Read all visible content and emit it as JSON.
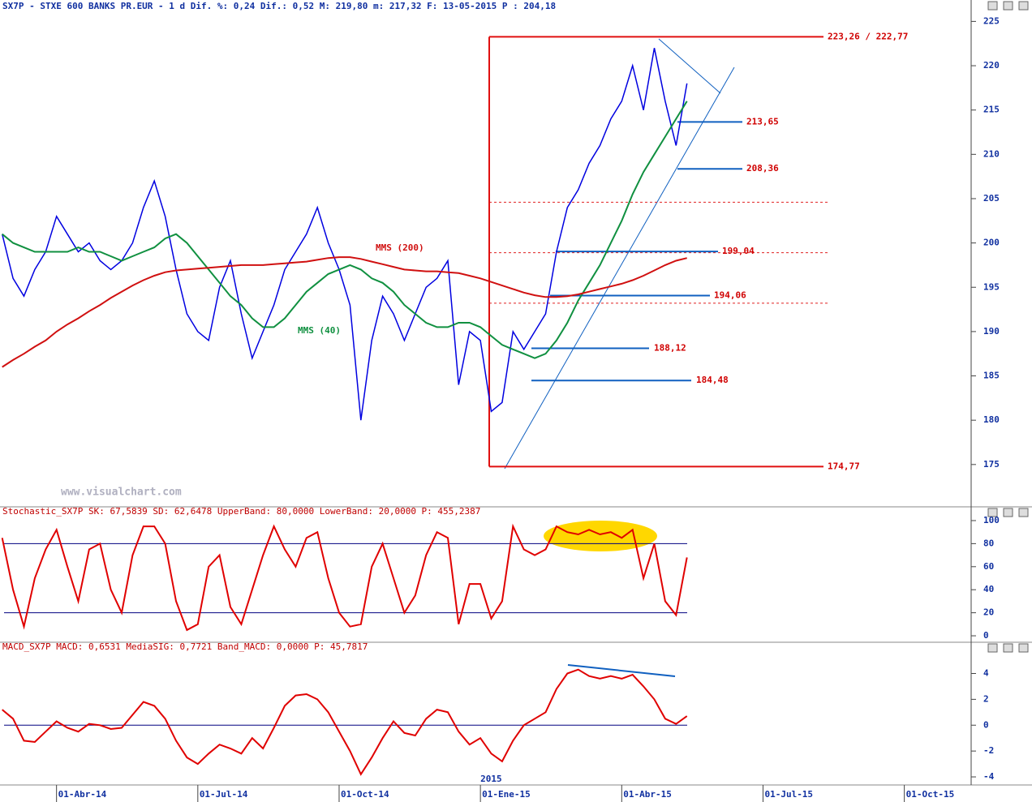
{
  "header": "SX7P - STXE 600 BANKS PR.EUR -  1 d Dif. %: 0,24 Dif.: 0,52 M: 219,80 m: 217,32 F: 13-05-2015 P : 204,18",
  "watermark": "www.visualchart.com",
  "chart_data": [
    {
      "type": "line",
      "x": [
        -5,
        -4,
        -3,
        -2,
        -1,
        0,
        1,
        2,
        3,
        4,
        5,
        6,
        7,
        8,
        9,
        10,
        11,
        12,
        13,
        14,
        15,
        16,
        17,
        18,
        19,
        20,
        21,
        22,
        23,
        24,
        25,
        26,
        27,
        28,
        29,
        30,
        31,
        32,
        33,
        34,
        35,
        36,
        37,
        38,
        39,
        40,
        41,
        42,
        43,
        44,
        45,
        46,
        47,
        48,
        49,
        50,
        51,
        52,
        53,
        54,
        55,
        56,
        57,
        58
      ],
      "xlim": [
        -5.2,
        84
      ],
      "ylim": [
        170.5,
        226.5
      ],
      "yticks": [
        175,
        180,
        185,
        190,
        195,
        200,
        205,
        210,
        215,
        220,
        225
      ],
      "series": [
        {
          "color": "#0000e0",
          "values": [
            201,
            196,
            194,
            197,
            199,
            203,
            201,
            199,
            200,
            198,
            197,
            198,
            200,
            204,
            207,
            203,
            197,
            192,
            190,
            189,
            195,
            198,
            192,
            187,
            190,
            193,
            197,
            199,
            201,
            204,
            200,
            197,
            193,
            180,
            189,
            194,
            192,
            189,
            192,
            195,
            196,
            198,
            184,
            190,
            189,
            181,
            182,
            190,
            188,
            190,
            192,
            199,
            204,
            206,
            209,
            211,
            214,
            216,
            220,
            215,
            222,
            216,
            211,
            218
          ]
        },
        {
          "name": "MMS (40)",
          "color": "#109040",
          "values": [
            201,
            200,
            199.5,
            199,
            199,
            199,
            199,
            199.5,
            199,
            199,
            198.5,
            198,
            198.5,
            199,
            199.5,
            200.5,
            201,
            200,
            198.5,
            197,
            195.5,
            194,
            193,
            191.5,
            190.5,
            190.5,
            191.5,
            193,
            194.5,
            195.5,
            196.5,
            197,
            197.5,
            197,
            196,
            195.5,
            194.5,
            193,
            192,
            191,
            190.5,
            190.5,
            191,
            191,
            190.5,
            189.5,
            188.5,
            188,
            187.5,
            187,
            187.5,
            189,
            191,
            193.5,
            195.5,
            197.5,
            200,
            202.5,
            205.5,
            208,
            210,
            212,
            214,
            216
          ]
        },
        {
          "name": "MMS (200)",
          "color": "#d01010",
          "values": [
            186,
            186.8,
            187.5,
            188.3,
            189,
            190,
            190.8,
            191.5,
            192.3,
            193,
            193.8,
            194.5,
            195.2,
            195.8,
            196.3,
            196.7,
            196.9,
            197,
            197.1,
            197.2,
            197.3,
            197.4,
            197.5,
            197.5,
            197.5,
            197.6,
            197.7,
            197.8,
            197.9,
            198.1,
            198.3,
            198.4,
            198.4,
            198.2,
            197.9,
            197.6,
            197.3,
            197,
            196.9,
            196.8,
            196.8,
            196.7,
            196.6,
            196.3,
            196,
            195.6,
            195.2,
            194.8,
            194.4,
            194.1,
            193.9,
            193.9,
            194,
            194.2,
            194.5,
            194.8,
            195.1,
            195.4,
            195.8,
            196.3,
            196.9,
            197.5,
            198,
            198.3
          ]
        }
      ],
      "levels": [
        {
          "value": 223.26,
          "label": "223,26 / 222,77"
        },
        {
          "value": 213.65,
          "label": "213,65"
        },
        {
          "value": 208.36,
          "label": "208,36"
        },
        {
          "value": 199.04,
          "label": "199,04"
        },
        {
          "value": 194.06,
          "label": "194,06"
        },
        {
          "value": 188.12,
          "label": "188,12"
        },
        {
          "value": 184.48,
          "label": "184,48"
        },
        {
          "value": 174.77,
          "label": "174,77"
        }
      ],
      "dashed_levels": [
        204.6,
        198.9,
        193.2
      ]
    },
    {
      "type": "line",
      "title": "Stochastic_SX7P SK: 67,5839 SD: 62,6478 UpperBand: 80,0000 LowerBand: 20,0000 P: 455,2387",
      "x": [
        -5,
        -4,
        -3,
        -2,
        -1,
        0,
        1,
        2,
        3,
        4,
        5,
        6,
        7,
        8,
        9,
        10,
        11,
        12,
        13,
        14,
        15,
        16,
        17,
        18,
        19,
        20,
        21,
        22,
        23,
        24,
        25,
        26,
        27,
        28,
        29,
        30,
        31,
        32,
        33,
        34,
        35,
        36,
        37,
        38,
        39,
        40,
        41,
        42,
        43,
        44,
        45,
        46,
        47,
        48,
        49,
        50,
        51,
        52,
        53,
        54,
        55,
        56,
        57,
        58
      ],
      "xlim": [
        -5.2,
        84
      ],
      "ylim": [
        -4.2,
        103.5
      ],
      "yticks": [
        0,
        20,
        40,
        60,
        80,
        100
      ],
      "bands": [
        20,
        80
      ],
      "series": [
        {
          "color": "#e00000",
          "values": [
            85,
            40,
            8,
            50,
            75,
            92,
            60,
            30,
            75,
            80,
            40,
            20,
            70,
            95,
            95,
            80,
            30,
            5,
            10,
            60,
            70,
            25,
            10,
            40,
            70,
            95,
            75,
            60,
            85,
            90,
            50,
            20,
            8,
            10,
            60,
            80,
            50,
            20,
            35,
            70,
            90,
            85,
            10,
            45,
            45,
            15,
            30,
            95,
            75,
            70,
            75,
            95,
            90,
            88,
            92,
            88,
            90,
            85,
            92,
            50,
            80,
            30,
            18,
            68
          ]
        }
      ]
    },
    {
      "type": "line",
      "title": "MACD_SX7P MACD: 0,6531 MediaSIG: 0,7721 Band_MACD: 0,0000 P: 45,7817",
      "x": [
        -5,
        -4,
        -3,
        -2,
        -1,
        0,
        1,
        2,
        3,
        4,
        5,
        6,
        7,
        8,
        9,
        10,
        11,
        12,
        13,
        14,
        15,
        16,
        17,
        18,
        19,
        20,
        21,
        22,
        23,
        24,
        25,
        26,
        27,
        28,
        29,
        30,
        31,
        32,
        33,
        34,
        35,
        36,
        37,
        38,
        39,
        40,
        41,
        42,
        43,
        44,
        45,
        46,
        47,
        48,
        49,
        50,
        51,
        52,
        53,
        54,
        55,
        56,
        57,
        58
      ],
      "xlim": [
        -5.2,
        84
      ],
      "ylim": [
        -4.5,
        5.6
      ],
      "yticks": [
        -4,
        -2,
        0,
        2,
        4
      ],
      "zero_line": true,
      "series": [
        {
          "color": "#e00000",
          "values": [
            1.2,
            0.5,
            -1.2,
            -1.3,
            -0.5,
            0.3,
            -0.2,
            -0.5,
            0.1,
            0,
            -0.3,
            -0.2,
            0.8,
            1.8,
            1.5,
            0.5,
            -1.2,
            -2.5,
            -3.0,
            -2.2,
            -1.5,
            -1.8,
            -2.2,
            -1.0,
            -1.8,
            -0.2,
            1.5,
            2.3,
            2.4,
            2.0,
            1.0,
            -0.5,
            -2.0,
            -3.8,
            -2.5,
            -1.0,
            0.3,
            -0.6,
            -0.8,
            0.5,
            1.2,
            1.0,
            -0.5,
            -1.5,
            -1.0,
            -2.2,
            -2.8,
            -1.2,
            0,
            0.5,
            1.0,
            2.8,
            4.0,
            4.3,
            3.8,
            3.6,
            3.8,
            3.6,
            3.9,
            3.0,
            2.0,
            0.5,
            0.1,
            0.7
          ]
        }
      ],
      "xticks": [
        {
          "value": 0,
          "label": "01-Abr-14"
        },
        {
          "value": 13,
          "label": "01-Jul-14"
        },
        {
          "value": 26,
          "label": "01-Oct-14"
        },
        {
          "value": 39,
          "label": "01-Ene-15"
        },
        {
          "value": 52,
          "label": "01-Abr-15"
        },
        {
          "value": 65,
          "label": "01-Jul-15"
        },
        {
          "value": 78,
          "label": "01-Oct-15"
        }
      ],
      "year_label": {
        "value": 39,
        "label": "2015"
      }
    }
  ]
}
